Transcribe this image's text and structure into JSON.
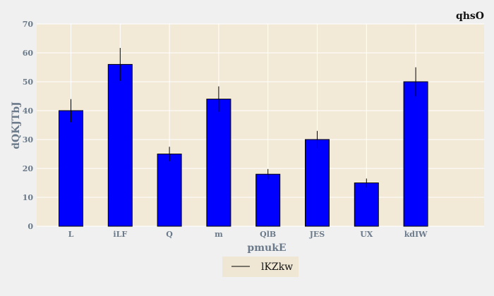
{
  "chart_data": {
    "type": "bar",
    "title": "qhsO",
    "xlabel": "pmukE",
    "ylabel": "dQKJTbJ",
    "categories": [
      "L",
      "iLF",
      "Q",
      "m",
      "QlB",
      "JES",
      "UX",
      "kdIW"
    ],
    "values": [
      40,
      56,
      25,
      44,
      18,
      30,
      15,
      50
    ],
    "errors": [
      4,
      5.7,
      2.5,
      4.4,
      1.8,
      3,
      1.5,
      5
    ],
    "ylim": [
      0,
      70
    ],
    "yticks": [
      0,
      10,
      20,
      30,
      40,
      50,
      60,
      70
    ],
    "legend": {
      "entries": [
        "lKZkw"
      ],
      "placement": "bottom-center"
    },
    "grid": true,
    "colors": {
      "bar": "#0000ff",
      "bar_edge": "#000000",
      "plot_bg": "#f2ead7",
      "page_bg": "#f0f0f0",
      "grid": "#ffffff",
      "error": "#000000"
    }
  }
}
